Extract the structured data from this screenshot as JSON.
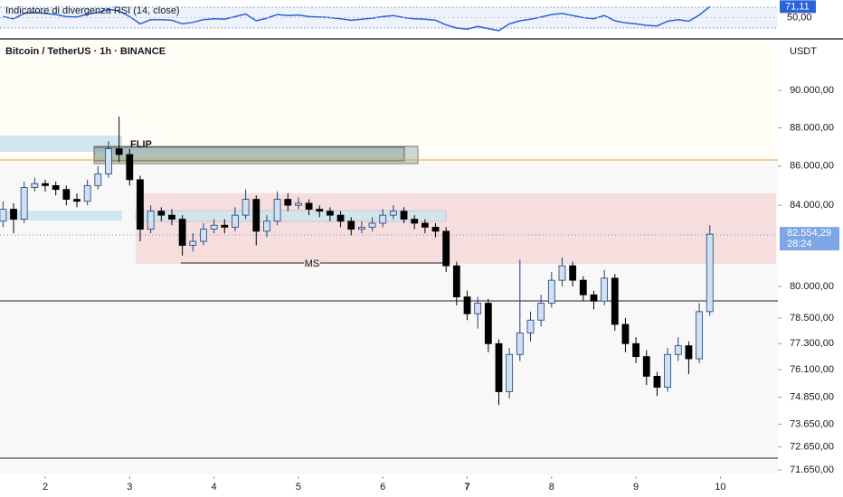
{
  "chart_data": {
    "type": "candlestick",
    "title": "Bitcoin / TetherUS · 1h · BINANCE",
    "y_unit": "USDT",
    "log_scale": true,
    "up_color": "#cfe0f5",
    "up_stroke": "#1f3f6e",
    "down_color": "#000000",
    "x": [
      1.5,
      1.625,
      1.75,
      1.875,
      2.0,
      2.125,
      2.25,
      2.375,
      2.5,
      2.625,
      2.75,
      2.875,
      3.0,
      3.125,
      3.25,
      3.375,
      3.5,
      3.625,
      3.75,
      3.875,
      4.0,
      4.125,
      4.25,
      4.375,
      4.5,
      4.625,
      4.75,
      4.875,
      5.0,
      5.125,
      5.25,
      5.375,
      5.5,
      5.625,
      5.75,
      5.875,
      6.0,
      6.125,
      6.25,
      6.375,
      6.5,
      6.625,
      6.75,
      6.875,
      7.0,
      7.125,
      7.25,
      7.375,
      7.5,
      7.625,
      7.75,
      7.875,
      8.0,
      8.125,
      8.25,
      8.375,
      8.5,
      8.625,
      8.75,
      8.875,
      9.0,
      9.125,
      9.25,
      9.375,
      9.5,
      9.625,
      9.75,
      9.875
    ],
    "open": [
      83200,
      83800,
      83300,
      84900,
      85100,
      85000,
      84800,
      84300,
      84200,
      85000,
      85600,
      86900,
      86600,
      85300,
      82800,
      83700,
      83500,
      83300,
      82000,
      82200,
      82800,
      83000,
      82900,
      83500,
      84300,
      82700,
      83200,
      84300,
      84000,
      84100,
      83800,
      83700,
      83500,
      83200,
      82800,
      82900,
      83100,
      83500,
      83700,
      83300,
      83100,
      82900,
      82700,
      81000,
      79500,
      78700,
      79200,
      77300,
      75100,
      76800,
      77800,
      78400,
      79200,
      80300,
      81000,
      80300,
      79600,
      79300,
      80400,
      78200,
      77300,
      76700,
      75800,
      75300,
      76800,
      77200,
      76600,
      78800
    ],
    "high": [
      84200,
      84100,
      85200,
      85400,
      85300,
      85200,
      85000,
      84600,
      85300,
      86000,
      87300,
      88600,
      86900,
      85500,
      84000,
      83900,
      83800,
      83500,
      82600,
      83100,
      83300,
      83300,
      83900,
      84800,
      84500,
      83500,
      84700,
      84600,
      84400,
      84300,
      84000,
      83900,
      83700,
      83400,
      83200,
      83400,
      83800,
      84000,
      83900,
      83500,
      83300,
      83100,
      82900,
      81200,
      79800,
      79500,
      79400,
      77500,
      77100,
      81300,
      78800,
      79600,
      80700,
      81400,
      81200,
      80500,
      79800,
      80800,
      80600,
      78500,
      77600,
      77000,
      76000,
      77100,
      77600,
      77400,
      79200,
      83000
    ],
    "low": [
      82900,
      82600,
      83100,
      84700,
      84700,
      84500,
      84000,
      83900,
      84000,
      84800,
      85400,
      86200,
      85000,
      82200,
      82600,
      83200,
      83000,
      81500,
      81700,
      82000,
      82600,
      82600,
      82700,
      83300,
      82000,
      82400,
      83000,
      83700,
      83800,
      83500,
      83400,
      83200,
      82900,
      82500,
      82600,
      82700,
      82900,
      83300,
      83100,
      82800,
      82600,
      82400,
      80700,
      79100,
      78400,
      78000,
      76900,
      74500,
      74800,
      76500,
      77400,
      78100,
      79000,
      80000,
      80000,
      79300,
      78900,
      79100,
      77900,
      76900,
      76400,
      75400,
      74900,
      75100,
      76500,
      75900,
      76400,
      78600
    ],
    "close": [
      83800,
      83300,
      84900,
      85100,
      85000,
      84800,
      84300,
      84200,
      85000,
      85600,
      86900,
      86600,
      85300,
      82800,
      83700,
      83500,
      83300,
      82000,
      82200,
      82800,
      83000,
      82900,
      83500,
      84300,
      82700,
      83200,
      84300,
      84000,
      84100,
      83800,
      83700,
      83500,
      83200,
      82800,
      82900,
      83100,
      83500,
      83700,
      83300,
      83100,
      82900,
      82700,
      81000,
      79500,
      78700,
      79200,
      77300,
      75100,
      76800,
      77800,
      78400,
      79200,
      80300,
      81000,
      80300,
      79600,
      79300,
      80400,
      78200,
      77300,
      76700,
      75800,
      75300,
      76800,
      77200,
      76600,
      78800,
      82554.29
    ],
    "last_price_label": "82.554,29",
    "countdown": "28:24",
    "xlim": [
      1.464,
      10.66
    ],
    "xticks": [
      2,
      3,
      4,
      5,
      6,
      7,
      8,
      9,
      10
    ],
    "ylim": [
      71460,
      92730
    ],
    "yticks": [
      {
        "value": 90000,
        "label": "90.000,00"
      },
      {
        "value": 88000,
        "label": "88.000,00"
      },
      {
        "value": 86000,
        "label": "86.000,00"
      },
      {
        "value": 84000,
        "label": "84.000,00"
      },
      {
        "value": 80000,
        "label": "80.000,00"
      },
      {
        "value": 78500,
        "label": "78.500,00"
      },
      {
        "value": 77300,
        "label": "77.300,00"
      },
      {
        "value": 76100,
        "label": "76.100,00"
      },
      {
        "value": 74850,
        "label": "74.850,00"
      },
      {
        "value": 73650,
        "label": "73.650,00"
      },
      {
        "value": 72650,
        "label": "72.650,00"
      },
      {
        "value": 71650,
        "label": "71.650,00"
      }
    ],
    "annotations": [
      "FLIP",
      "MS"
    ],
    "rsi": {
      "name": "Indicatore di divergenza RSI (14, close)",
      "color": "#2962d9",
      "values": [
        52,
        48,
        58,
        60,
        58,
        56,
        52,
        51,
        57,
        60,
        66,
        63,
        52,
        38,
        46,
        46,
        45,
        38,
        41,
        46,
        48,
        47,
        52,
        57,
        44,
        49,
        56,
        54,
        55,
        52,
        51,
        50,
        48,
        45,
        47,
        49,
        52,
        54,
        50,
        48,
        47,
        45,
        36,
        30,
        28,
        33,
        29,
        25,
        38,
        44,
        47,
        51,
        56,
        58,
        54,
        50,
        48,
        54,
        44,
        40,
        38,
        35,
        34,
        43,
        46,
        43,
        55,
        71.11
      ],
      "last_label": "71,11",
      "ylim": [
        10.9,
        83.9
      ],
      "yticks": [
        {
          "value": 50,
          "label": "50,00"
        }
      ]
    }
  }
}
